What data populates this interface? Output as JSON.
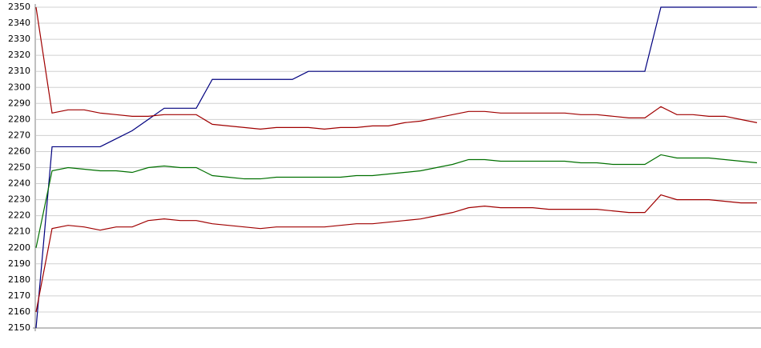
{
  "chart_data": {
    "type": "line",
    "categories": [
      null,
      null,
      null,
      null,
      null,
      null,
      null,
      null,
      null,
      null,
      null,
      null,
      null,
      null,
      null,
      null,
      null,
      null,
      null,
      null,
      null,
      null,
      null,
      null,
      null,
      null,
      null,
      null,
      null,
      null,
      null,
      null,
      null,
      null,
      null,
      null,
      null,
      null,
      null,
      null,
      null,
      null,
      null,
      null,
      null,
      null
    ],
    "series": [
      {
        "color": "#00007f",
        "values": [
          2150,
          2263,
          2263,
          2263,
          2263,
          2268,
          2273,
          2280,
          2287,
          2287,
          2287,
          2305,
          2305,
          2305,
          2305,
          2305,
          2305,
          2310,
          2310,
          2310,
          2310,
          2310,
          2310,
          2310,
          2310,
          2310,
          2310,
          2310,
          2310,
          2310,
          2310,
          2310,
          2310,
          2310,
          2310,
          2310,
          2310,
          2310,
          2310,
          2350,
          2350,
          2350,
          2350,
          2350,
          2350,
          2350
        ]
      },
      {
        "color": "#a00000",
        "values": [
          2350,
          2284,
          2286,
          2286,
          2284,
          2283,
          2282,
          2282,
          2283,
          2283,
          2283,
          2277,
          2276,
          2275,
          2274,
          2275,
          2275,
          2275,
          2274,
          2275,
          2275,
          2276,
          2276,
          2278,
          2279,
          2281,
          2283,
          2285,
          2285,
          2284,
          2284,
          2284,
          2284,
          2284,
          2283,
          2283,
          2282,
          2281,
          2281,
          2288,
          2283,
          2283,
          2282,
          2282,
          2280,
          2278
        ]
      },
      {
        "color": "#007000",
        "values": [
          2200,
          2248,
          2250,
          2249,
          2248,
          2248,
          2247,
          2250,
          2251,
          2250,
          2250,
          2245,
          2244,
          2243,
          2243,
          2244,
          2244,
          2244,
          2244,
          2244,
          2245,
          2245,
          2246,
          2247,
          2248,
          2250,
          2252,
          2255,
          2255,
          2254,
          2254,
          2254,
          2254,
          2254,
          2253,
          2253,
          2252,
          2252,
          2252,
          2258,
          2256,
          2256,
          2256,
          2255,
          2254,
          2253
        ]
      },
      {
        "color": "#a00000",
        "values": [
          2160,
          2212,
          2214,
          2213,
          2211,
          2213,
          2213,
          2217,
          2218,
          2217,
          2217,
          2215,
          2214,
          2213,
          2212,
          2213,
          2213,
          2213,
          2213,
          2214,
          2215,
          2215,
          2216,
          2217,
          2218,
          2220,
          2222,
          2225,
          2226,
          2225,
          2225,
          2225,
          2224,
          2224,
          2224,
          2224,
          2223,
          2222,
          2222,
          2233,
          2230,
          2230,
          2230,
          2229,
          2228,
          2228
        ]
      }
    ],
    "ylim": [
      2150,
      2350
    ],
    "yticks": [
      2150,
      2160,
      2170,
      2180,
      2190,
      2200,
      2210,
      2220,
      2230,
      2240,
      2250,
      2260,
      2270,
      2280,
      2290,
      2300,
      2310,
      2320,
      2330,
      2340,
      2350
    ],
    "grid": true
  }
}
